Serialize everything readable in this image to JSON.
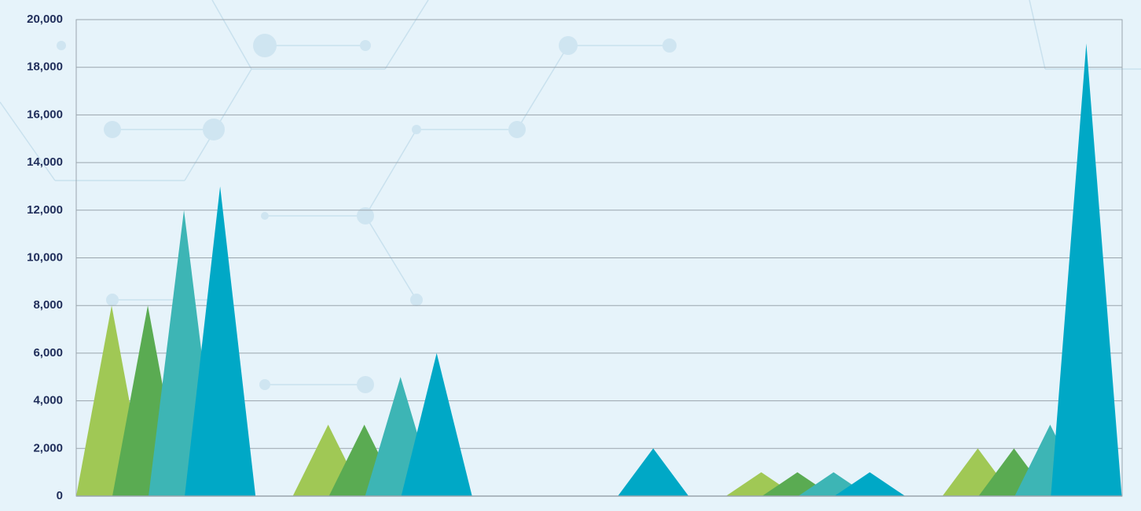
{
  "chart_data": {
    "type": "triangle-bar",
    "categories": [
      null,
      null,
      null,
      null,
      null
    ],
    "series": [
      {
        "color": "#a0c855",
        "values": [
          8000,
          3000,
          0,
          1000,
          2000
        ]
      },
      {
        "color": "#5aab52",
        "values": [
          8000,
          3000,
          0,
          1000,
          2000
        ]
      },
      {
        "color": "#3db5b5",
        "values": [
          12000,
          5000,
          0,
          1000,
          3000
        ]
      },
      {
        "color": "#00a8c6",
        "values": [
          13000,
          6000,
          2000,
          1000,
          19000
        ]
      }
    ],
    "ylim": [
      0,
      20000
    ],
    "yticks": [
      0,
      {
        "value": 2000,
        "label": "2,000"
      },
      {
        "value": 4000,
        "label": "4,000"
      },
      {
        "value": 6000,
        "label": "6,000"
      },
      {
        "value": 8000,
        "label": "8,000"
      },
      {
        "value": 10000,
        "label": "10,000"
      },
      {
        "value": 12000,
        "label": "12,000"
      },
      {
        "value": 14000,
        "label": "14,000"
      },
      {
        "value": 16000,
        "label": "16,000"
      },
      {
        "value": 18000,
        "label": "18,000"
      },
      {
        "value": 20000,
        "label": "20,000"
      }
    ],
    "grid": true
  }
}
